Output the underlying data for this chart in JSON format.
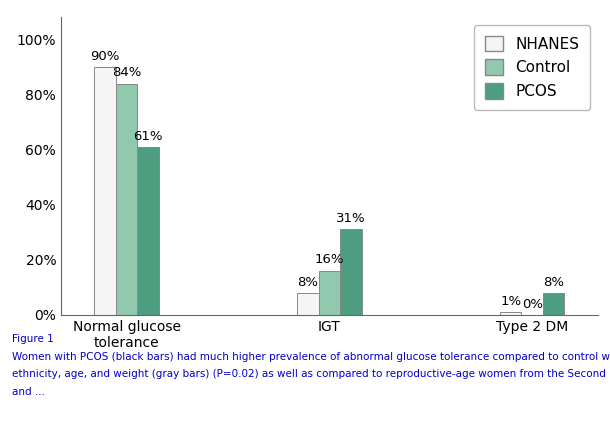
{
  "categories": [
    "Normal glucose\ntolerance",
    "IGT",
    "Type 2 DM"
  ],
  "series": {
    "NHANES": [
      90,
      8,
      1
    ],
    "Control": [
      84,
      16,
      0
    ],
    "PCOS": [
      61,
      31,
      8
    ]
  },
  "colors": {
    "NHANES": "#f5f5f5",
    "Control": "#90c9ad",
    "PCOS": "#4d9e80"
  },
  "bar_edge_color": "#888888",
  "ylim": [
    0,
    108
  ],
  "yticks": [
    0,
    20,
    40,
    60,
    80,
    100
  ],
  "ytick_labels": [
    "0%",
    "20%",
    "40%",
    "60%",
    "80%",
    "100%"
  ],
  "bar_width": 0.18,
  "annotation_fontsize": 9.5,
  "tick_fontsize": 10,
  "legend_fontsize": 11,
  "caption_line1": "Figure 1",
  "caption_line2": "Women with PCOS (black bars) had much higher prevalence of abnormal glucose tolerance compared to control women of similar",
  "caption_line3": "ethnicity, age, and weight (gray bars) (P=0.02) as well as compared to reproductive-age women from the Second National Health",
  "caption_line4": "and ...",
  "caption_color": "#0000cc",
  "caption_fontsize": 7.5,
  "background_color": "#ffffff"
}
